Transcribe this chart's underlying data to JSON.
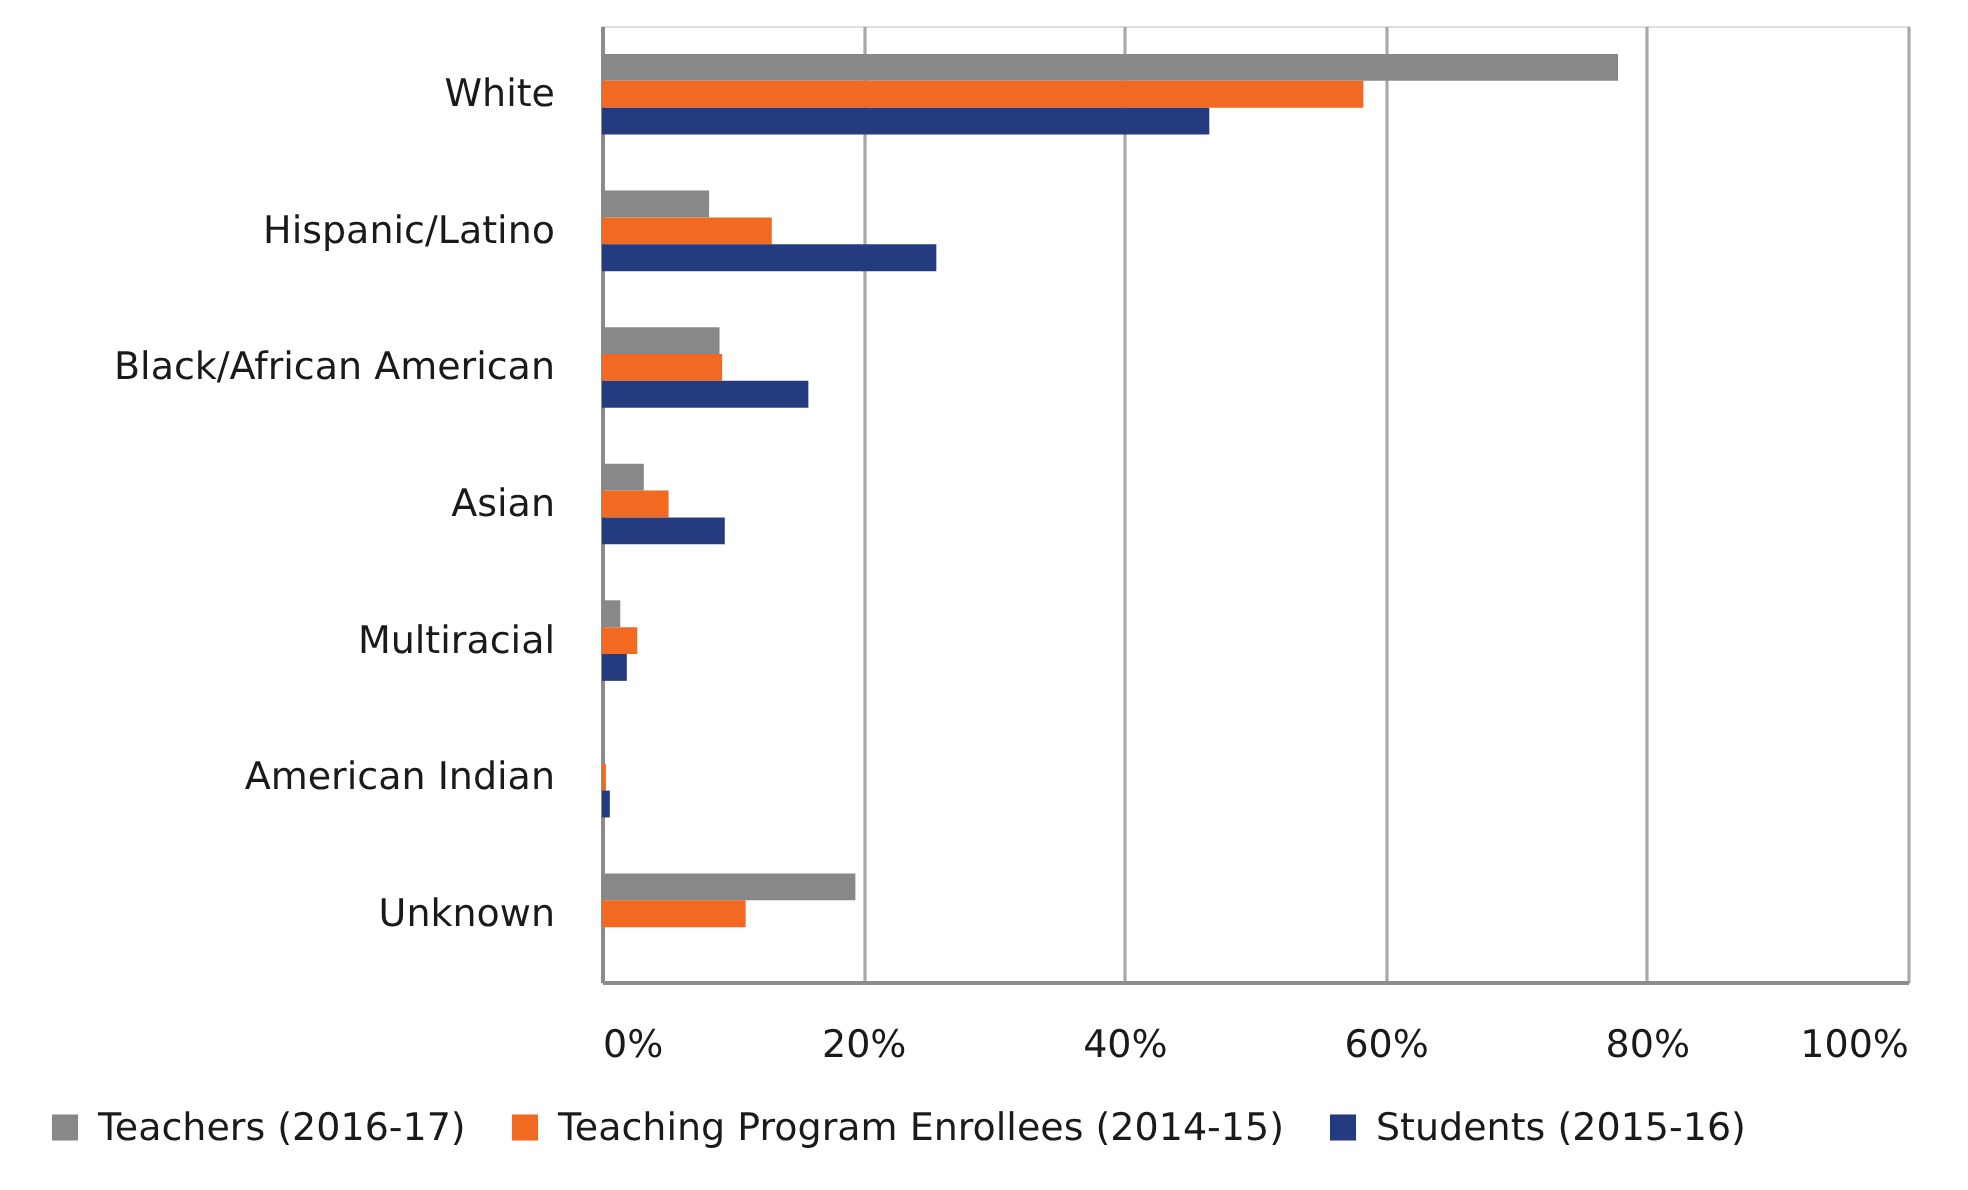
{
  "chart_data": {
    "type": "bar",
    "orientation": "horizontal",
    "categories": [
      "White",
      "Hispanic/Latino",
      "Black/African American",
      "Asian",
      "Multiracial",
      "American Indian",
      "Unknown"
    ],
    "series": [
      {
        "name": "Teachers (2016-17)",
        "color": "#87888a",
        "values": [
          77.8,
          8.2,
          9.0,
          3.2,
          1.4,
          null,
          19.4
        ]
      },
      {
        "name": "Teaching Program Enrollees (2014-15)",
        "color": "#f26a22",
        "values": [
          58.3,
          13.0,
          9.2,
          5.1,
          2.7,
          0.3,
          11.0
        ]
      },
      {
        "name": "Students (2015-16)",
        "color": "#243b80",
        "values": [
          46.5,
          25.6,
          15.8,
          9.4,
          1.9,
          0.6,
          null
        ]
      }
    ],
    "xlim": [
      0,
      100
    ],
    "xticks": [
      {
        "value": 0,
        "label": "0%"
      },
      {
        "value": 20,
        "label": "20%"
      },
      {
        "value": 40,
        "label": "40%"
      },
      {
        "value": 60,
        "label": "60%"
      },
      {
        "value": 80,
        "label": "80%"
      },
      {
        "value": 100,
        "label": "100%"
      }
    ],
    "grid": "x",
    "legend": "bottom"
  }
}
